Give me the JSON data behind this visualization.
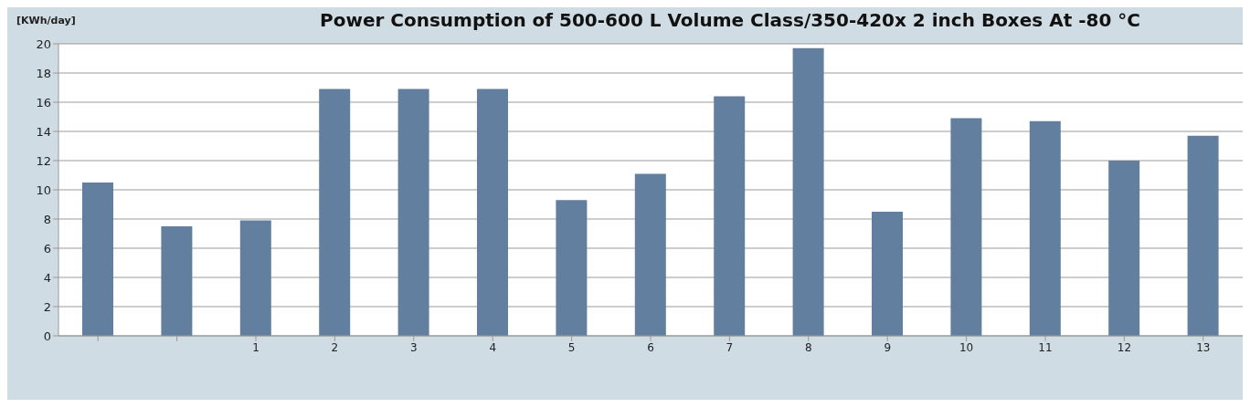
{
  "chart_data": {
    "type": "bar",
    "title": "Power Consumption of 500-600 L Volume Class/350-420x 2 inch Boxes At -80 °C",
    "ylabel": "[KWh/day]",
    "categories": [
      null,
      null,
      "1",
      "2",
      "3",
      "4",
      "5",
      "6",
      "7",
      "8",
      "9",
      "10",
      "11",
      "12",
      "13"
    ],
    "values": [
      10.5,
      7.5,
      7.9,
      16.9,
      16.9,
      16.9,
      9.3,
      11.1,
      16.4,
      19.7,
      8.5,
      14.9,
      14.7,
      12.0,
      13.7
    ],
    "color": "#627f9f",
    "ylim": [
      0,
      20
    ],
    "yticks": [
      0,
      2,
      4,
      6,
      8,
      10,
      12,
      14,
      16,
      18,
      20
    ],
    "grid": "y"
  }
}
